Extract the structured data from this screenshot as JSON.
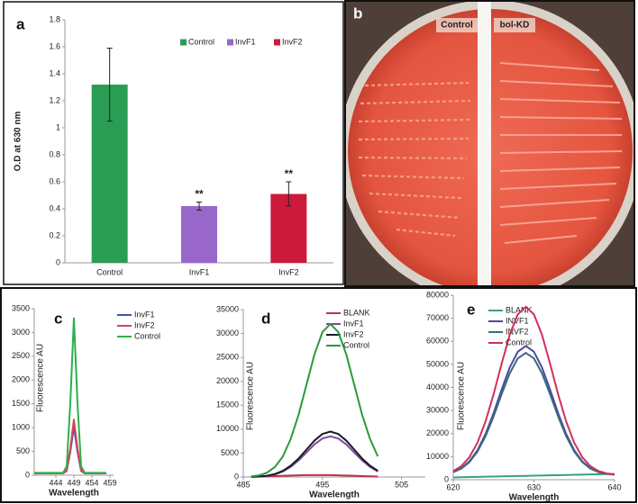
{
  "chart_data": [
    {
      "type": "bar",
      "label": "a",
      "y_label": "O.D at 630 nm",
      "categories": [
        "Control",
        "InvF1",
        "InvF2"
      ],
      "values": [
        1.32,
        0.42,
        0.51
      ],
      "errors": [
        0.27,
        0.03,
        0.09
      ],
      "colors": [
        "#2a9d55",
        "#9966cc",
        "#cc1a3a"
      ],
      "significance": [
        null,
        "**",
        "**"
      ],
      "ylim": [
        0,
        1.8
      ],
      "yticks": [
        0,
        0.2,
        0.4,
        0.6,
        0.8,
        1,
        1.2,
        1.4,
        1.6,
        1.8
      ]
    },
    {
      "type": "line",
      "label": "c",
      "x_label": "Wavelength",
      "y_label": "Fluorescence AU",
      "x": [
        438,
        439,
        440,
        441,
        442,
        443,
        444,
        445,
        446,
        447,
        448,
        449,
        450,
        451,
        452,
        453,
        454,
        455,
        456,
        457,
        458
      ],
      "series": [
        {
          "name": "InvF1",
          "color": "#3d5aa8",
          "values": [
            40,
            40,
            40,
            40,
            40,
            40,
            40,
            40,
            40,
            90,
            490,
            1020,
            490,
            90,
            40,
            40,
            40,
            40,
            40,
            40,
            40
          ]
        },
        {
          "name": "InvF2",
          "color": "#e0405a",
          "values": [
            40,
            40,
            40,
            40,
            40,
            40,
            40,
            40,
            40,
            100,
            560,
            1170,
            560,
            100,
            40,
            40,
            40,
            40,
            40,
            40,
            40
          ]
        },
        {
          "name": "Control",
          "color": "#2eb04a",
          "values": [
            50,
            50,
            50,
            50,
            50,
            50,
            50,
            50,
            50,
            190,
            1510,
            3300,
            1510,
            190,
            50,
            50,
            50,
            50,
            50,
            50,
            50
          ]
        }
      ],
      "xlim": [
        438,
        460
      ],
      "xticks": [
        444,
        449,
        454,
        459
      ],
      "ylim": [
        0,
        3500
      ],
      "yticks": [
        0,
        500,
        1000,
        1500,
        2000,
        2500,
        3000,
        3500
      ]
    },
    {
      "type": "line",
      "label": "d",
      "x_label": "Wavelength",
      "y_label": "Fluorescence AU",
      "x": [
        486,
        487,
        488,
        489,
        490,
        491,
        492,
        493,
        494,
        495,
        496,
        497,
        498,
        499,
        500,
        501,
        502
      ],
      "series": [
        {
          "name": "BLANK",
          "color": "#c0304a",
          "values": [
            100,
            100,
            150,
            200,
            250,
            300,
            350,
            400,
            400,
            400,
            400,
            350,
            300,
            250,
            200,
            150,
            100
          ]
        },
        {
          "name": "InvF1",
          "color": "#7a4a9a",
          "values": [
            32,
            93,
            239,
            559,
            1144,
            2128,
            3485,
            5160,
            6835,
            8060,
            8500,
            8060,
            6835,
            5160,
            3485,
            2128,
            1144
          ]
        },
        {
          "name": "InvF2",
          "color": "#1a1a2a",
          "values": [
            36,
            104,
            267,
            624,
            1277,
            2375,
            3890,
            5760,
            7630,
            9000,
            9500,
            9000,
            7630,
            5760,
            3890,
            2375,
            1277
          ]
        },
        {
          "name": "Control",
          "color": "#2a9a3a",
          "values": [
            120,
            350,
            900,
            2100,
            4300,
            8000,
            13100,
            19400,
            25700,
            30300,
            32000,
            30300,
            25700,
            19400,
            13100,
            8000,
            4300
          ]
        }
      ],
      "xlim": [
        485,
        508
      ],
      "xticks": [
        485,
        495,
        505
      ],
      "ylim": [
        0,
        35000
      ],
      "yticks": [
        0,
        5000,
        10000,
        15000,
        20000,
        25000,
        30000,
        35000
      ]
    },
    {
      "type": "line",
      "label": "e",
      "x_label": "Wavelength",
      "y_label": "Fluorescence AU",
      "x": [
        620,
        621,
        622,
        623,
        624,
        625,
        626,
        627,
        628,
        629,
        630,
        631,
        632,
        633,
        634,
        635,
        636,
        637,
        638,
        639,
        640
      ],
      "series": [
        {
          "name": "BLANK",
          "color": "#3aa080",
          "values": [
            1000,
            1075,
            1150,
            1225,
            1300,
            1375,
            1450,
            1525,
            1600,
            1675,
            1750,
            1825,
            1900,
            1975,
            2050,
            2125,
            2200,
            2275,
            2350,
            2425,
            2500
          ]
        },
        {
          "name": "INVF1",
          "color": "#4a4aa0",
          "values": [
            3340,
            4970,
            7940,
            12750,
            19810,
            28880,
            39070,
            48650,
            55480,
            58000,
            55480,
            48650,
            39070,
            28880,
            19810,
            12750,
            7940,
            4970,
            3340,
            2560,
            2220
          ]
        },
        {
          "name": "INVF2",
          "color": "#3a6a80",
          "values": [
            3270,
            4810,
            7620,
            12180,
            18850,
            27440,
            37090,
            46150,
            52620,
            55000,
            52620,
            46150,
            37090,
            27440,
            18850,
            12180,
            7620,
            4810,
            3270,
            2530,
            2210
          ]
        },
        {
          "name": "Control",
          "color": "#d0305a",
          "values": [
            3750,
            5870,
            9740,
            16020,
            25210,
            37040,
            50330,
            62810,
            71720,
            75000,
            71720,
            62810,
            50330,
            37040,
            25210,
            16020,
            9740,
            5870,
            3750,
            2730,
            2290
          ]
        }
      ],
      "xlim": [
        620,
        640
      ],
      "xticks": [
        620,
        630,
        640
      ],
      "ylim": [
        0,
        80000
      ],
      "yticks": [
        0,
        10000,
        20000,
        30000,
        40000,
        50000,
        60000,
        70000,
        80000
      ]
    }
  ],
  "photo": {
    "label": "b",
    "left_label": "Control",
    "right_label": "bol-KD"
  }
}
